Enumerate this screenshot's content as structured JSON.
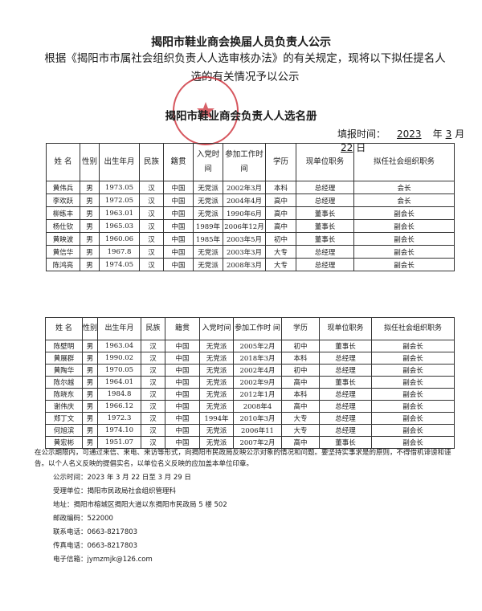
{
  "doc": {
    "title": "揭阳市鞋业商会换届人员负责人公示",
    "intro": "根据《揭阳市市属社会组织负责人人选审核办法》的有关规定，现将以下拟任提名人选的有关情况予以公示",
    "roster_title": "揭阳市鞋业商会负责人人选名册",
    "fill_label": "填报时间：",
    "fill_year": "2023",
    "fill_year_unit": "年",
    "fill_month": "3",
    "fill_month_unit": "月",
    "fill_day": "22",
    "fill_day_unit": "日",
    "stamp_text": "揭阳市鞋业商会",
    "stamp_color": "#c81e28"
  },
  "table1": {
    "headers": [
      "姓 名",
      "性别",
      "出生年月",
      "民族",
      "籍贯",
      "入党时间",
      "参加工作时 间",
      "学历",
      "现单位职务",
      "拟任社会组织职务"
    ],
    "rows": [
      [
        "黄伟兵",
        "男",
        "1973.05",
        "汉",
        "中国",
        "无党派",
        "2002年3月",
        "本科",
        "总经理",
        "会长"
      ],
      [
        "李欢跃",
        "男",
        "1972.05",
        "汉",
        "中国",
        "无党派",
        "2004年4月",
        "高中",
        "总经理",
        "会长"
      ],
      [
        "柳练丰",
        "男",
        "1963.01",
        "汉",
        "中国",
        "无党派",
        "1990年6月",
        "高中",
        "董事长",
        "副会长"
      ],
      [
        "杨仕钦",
        "男",
        "1965.03",
        "汉",
        "中国",
        "1989年",
        "2006年12月",
        "高中",
        "董事长",
        "副会长"
      ],
      [
        "黄映波",
        "男",
        "1960.06",
        "汉",
        "中国",
        "1985年",
        "2003年5月",
        "初中",
        "董事长",
        "副会长"
      ],
      [
        "黄信华",
        "男",
        "1967.8",
        "汉",
        "中国",
        "无党派",
        "2003年3月",
        "大专",
        "总经理",
        "副会长"
      ],
      [
        "陈鸿亮",
        "男",
        "1974.05",
        "汉",
        "中国",
        "无党派",
        "2008年3月",
        "大专",
        "总经理",
        "副会长"
      ]
    ]
  },
  "table2": {
    "headers": [
      "姓 名",
      "性别",
      "出生年月",
      "民族",
      "籍贯",
      "入党时间",
      "参加工作时 间",
      "学历",
      "现单位职务",
      "拟任社会组织职务"
    ],
    "rows": [
      [
        "陈壁明",
        "男",
        "1963.04",
        "汉",
        "中国",
        "无党派",
        "2005年2月",
        "初中",
        "董事长",
        "副会长"
      ],
      [
        "黄展群",
        "男",
        "1990.02",
        "汉",
        "中国",
        "无党派",
        "2018年3月",
        "本科",
        "总经理",
        "副会长"
      ],
      [
        "黄陶华",
        "男",
        "1970.05",
        "汉",
        "中国",
        "无党派",
        "2002年4月",
        "初中",
        "总经理",
        "副会长"
      ],
      [
        "陈尔越",
        "男",
        "1964.01",
        "汉",
        "中国",
        "无党派",
        "2002年9月",
        "高中",
        "董事长",
        "副会长"
      ],
      [
        "陈晓东",
        "男",
        "1984.8",
        "汉",
        "中国",
        "无党派",
        "2012年1月",
        "本科",
        "总经理",
        "副会长"
      ],
      [
        "谢伟庆",
        "男",
        "1966.12",
        "汉",
        "中国",
        "无党派",
        "2008年4",
        "高中",
        "总经理",
        "副会长"
      ],
      [
        "郑丁文",
        "男",
        "1972.3",
        "汉",
        "中国",
        "1994年",
        "2010年3月",
        "大专",
        "总经理",
        "副会长"
      ],
      [
        "何旭滨",
        "男",
        "1974.10",
        "汉",
        "中国",
        "无党派",
        "2006年11",
        "大专",
        "总经理",
        "副会长"
      ],
      [
        "黄宏彬",
        "男",
        "1951.07",
        "汉",
        "中国",
        "无党派",
        "2007年2月",
        "高中",
        "董事长",
        "副会长"
      ]
    ]
  },
  "notice": "在公示期限内，可通过来信、来电、来访等形式，向揭阳市民政局反映公示对象的情况和问题。要坚持实事求是的原则，不得借机诽谤和诬告。以个人名义反映的提倡实名，以单位名义反映的应加盖本单位印章。",
  "info": [
    "公示时间：2023 年 3 月 22 日至 3 月 29 日",
    "受理单位：揭阳市民政局社会组织管理科",
    "地址：揭阳市榕城区揭阳大道以东揭阳市民政局 5 楼 502",
    "邮政编码：522000",
    "联系电话：0663-8217803",
    "传真电话：0663-8217803",
    "电子信箱：jymzmjk@126.com"
  ]
}
